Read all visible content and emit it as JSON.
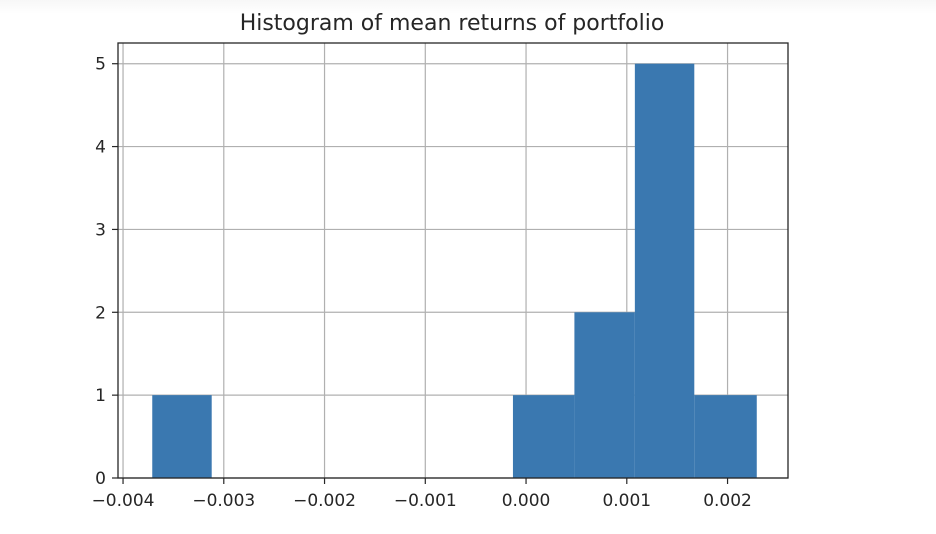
{
  "chart_data": {
    "type": "histogram",
    "title": "Histogram of mean returns of portfolio",
    "xlabel": "",
    "ylabel": "",
    "xlim": [
      -0.00405,
      0.0026
    ],
    "ylim": [
      0,
      5.25
    ],
    "grid": true,
    "bar_color": "#3a78b0",
    "bins": [
      {
        "start": -0.00371,
        "end": -0.00312,
        "count": 1
      },
      {
        "start": -0.00312,
        "end": -0.00252,
        "count": 0
      },
      {
        "start": -0.00252,
        "end": -0.00193,
        "count": 0
      },
      {
        "start": -0.00193,
        "end": -0.00133,
        "count": 0
      },
      {
        "start": -0.00133,
        "end": -0.00073,
        "count": 0
      },
      {
        "start": -0.00073,
        "end": -0.00013,
        "count": 0
      },
      {
        "start": -0.00013,
        "end": 0.00048,
        "count": 1
      },
      {
        "start": 0.00048,
        "end": 0.00108,
        "count": 2
      },
      {
        "start": 0.00108,
        "end": 0.00167,
        "count": 5
      },
      {
        "start": 0.00167,
        "end": 0.00229,
        "count": 1
      }
    ],
    "x_ticks": [
      {
        "value": -0.004,
        "label": "−0.004"
      },
      {
        "value": -0.003,
        "label": "−0.003"
      },
      {
        "value": -0.002,
        "label": "−0.002"
      },
      {
        "value": -0.001,
        "label": "−0.001"
      },
      {
        "value": 0.0,
        "label": "0.000"
      },
      {
        "value": 0.001,
        "label": "0.001"
      },
      {
        "value": 0.002,
        "label": "0.002"
      }
    ],
    "y_ticks": [
      {
        "value": 0,
        "label": "0"
      },
      {
        "value": 1,
        "label": "1"
      },
      {
        "value": 2,
        "label": "2"
      },
      {
        "value": 3,
        "label": "3"
      },
      {
        "value": 4,
        "label": "4"
      },
      {
        "value": 5,
        "label": "5"
      }
    ]
  }
}
